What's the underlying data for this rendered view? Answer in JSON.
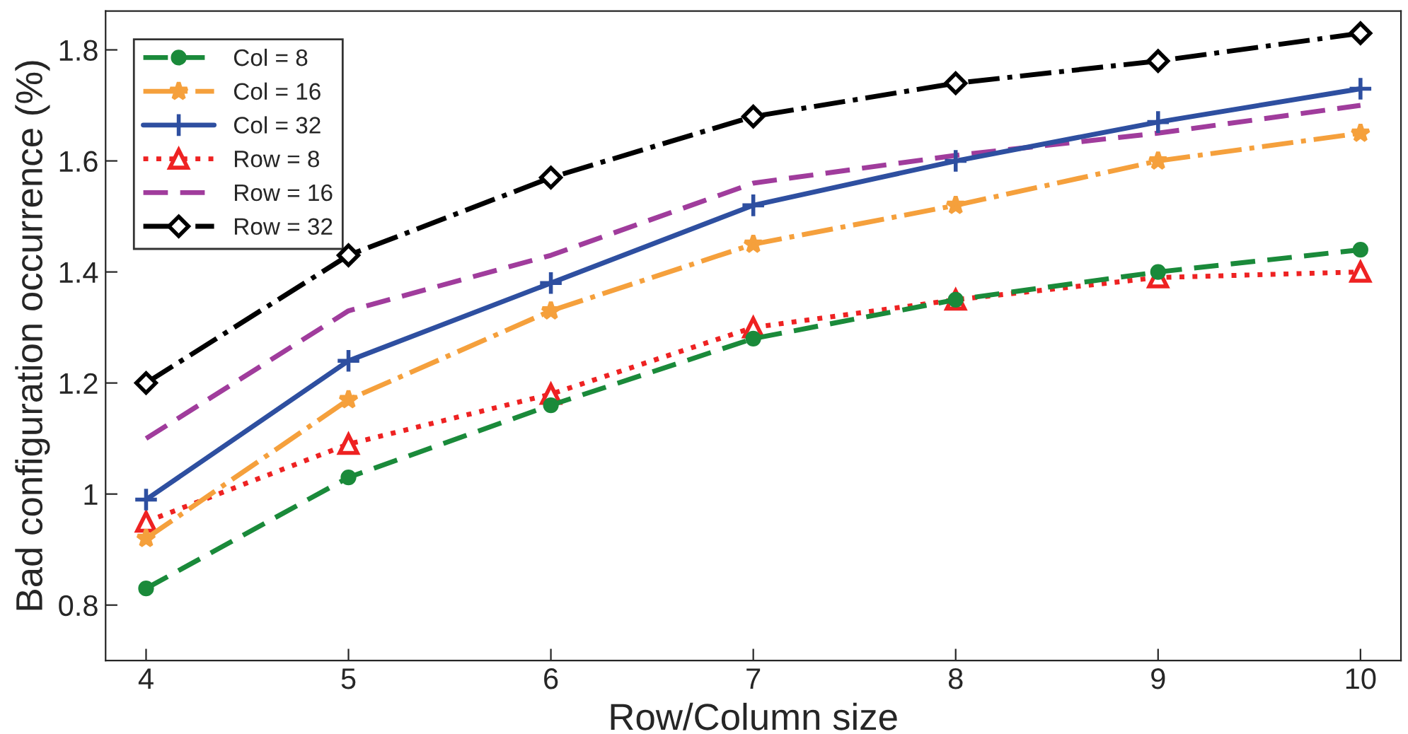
{
  "chart_data": {
    "type": "line",
    "xlabel": "Row/Column size",
    "ylabel": "Bad configuration occurrence (%)",
    "x": [
      4,
      5,
      6,
      7,
      8,
      9,
      10
    ],
    "series": [
      {
        "name": "Col = 8",
        "color": "#1a8a3a",
        "marker": "circle",
        "line_style": "dashed",
        "values": [
          0.83,
          1.03,
          1.16,
          1.28,
          1.35,
          1.4,
          1.44
        ]
      },
      {
        "name": "Col = 16",
        "color": "#f5a03c",
        "marker": "star",
        "line_style": "dashdot",
        "values": [
          0.92,
          1.17,
          1.33,
          1.45,
          1.52,
          1.6,
          1.65
        ]
      },
      {
        "name": "Col = 32",
        "color": "#2e4fa0",
        "marker": "cross",
        "line_style": "solid",
        "values": [
          0.99,
          1.24,
          1.38,
          1.52,
          1.6,
          1.67,
          1.73
        ]
      },
      {
        "name": "Row = 8",
        "color": "#ee2222",
        "marker": "triangle",
        "line_style": "dotted",
        "values": [
          0.95,
          1.09,
          1.18,
          1.3,
          1.35,
          1.39,
          1.4
        ]
      },
      {
        "name": "Row = 16",
        "color": "#a03c9c",
        "marker": "none",
        "line_style": "dashed",
        "values": [
          1.1,
          1.33,
          1.43,
          1.56,
          1.61,
          1.65,
          1.7
        ]
      },
      {
        "name": "Row = 32",
        "color": "#000000",
        "marker": "diamond",
        "line_style": "dashdot",
        "values": [
          1.2,
          1.43,
          1.57,
          1.68,
          1.74,
          1.78,
          1.83
        ]
      }
    ],
    "xlim": [
      3.8,
      10.2
    ],
    "xticks": [
      4,
      5,
      6,
      7,
      8,
      9,
      10
    ],
    "ylim": [
      0.7,
      1.87
    ],
    "yticks": [
      0.8,
      1,
      1.2,
      1.4,
      1.6,
      1.8
    ],
    "grid": false,
    "legend": "top left"
  }
}
